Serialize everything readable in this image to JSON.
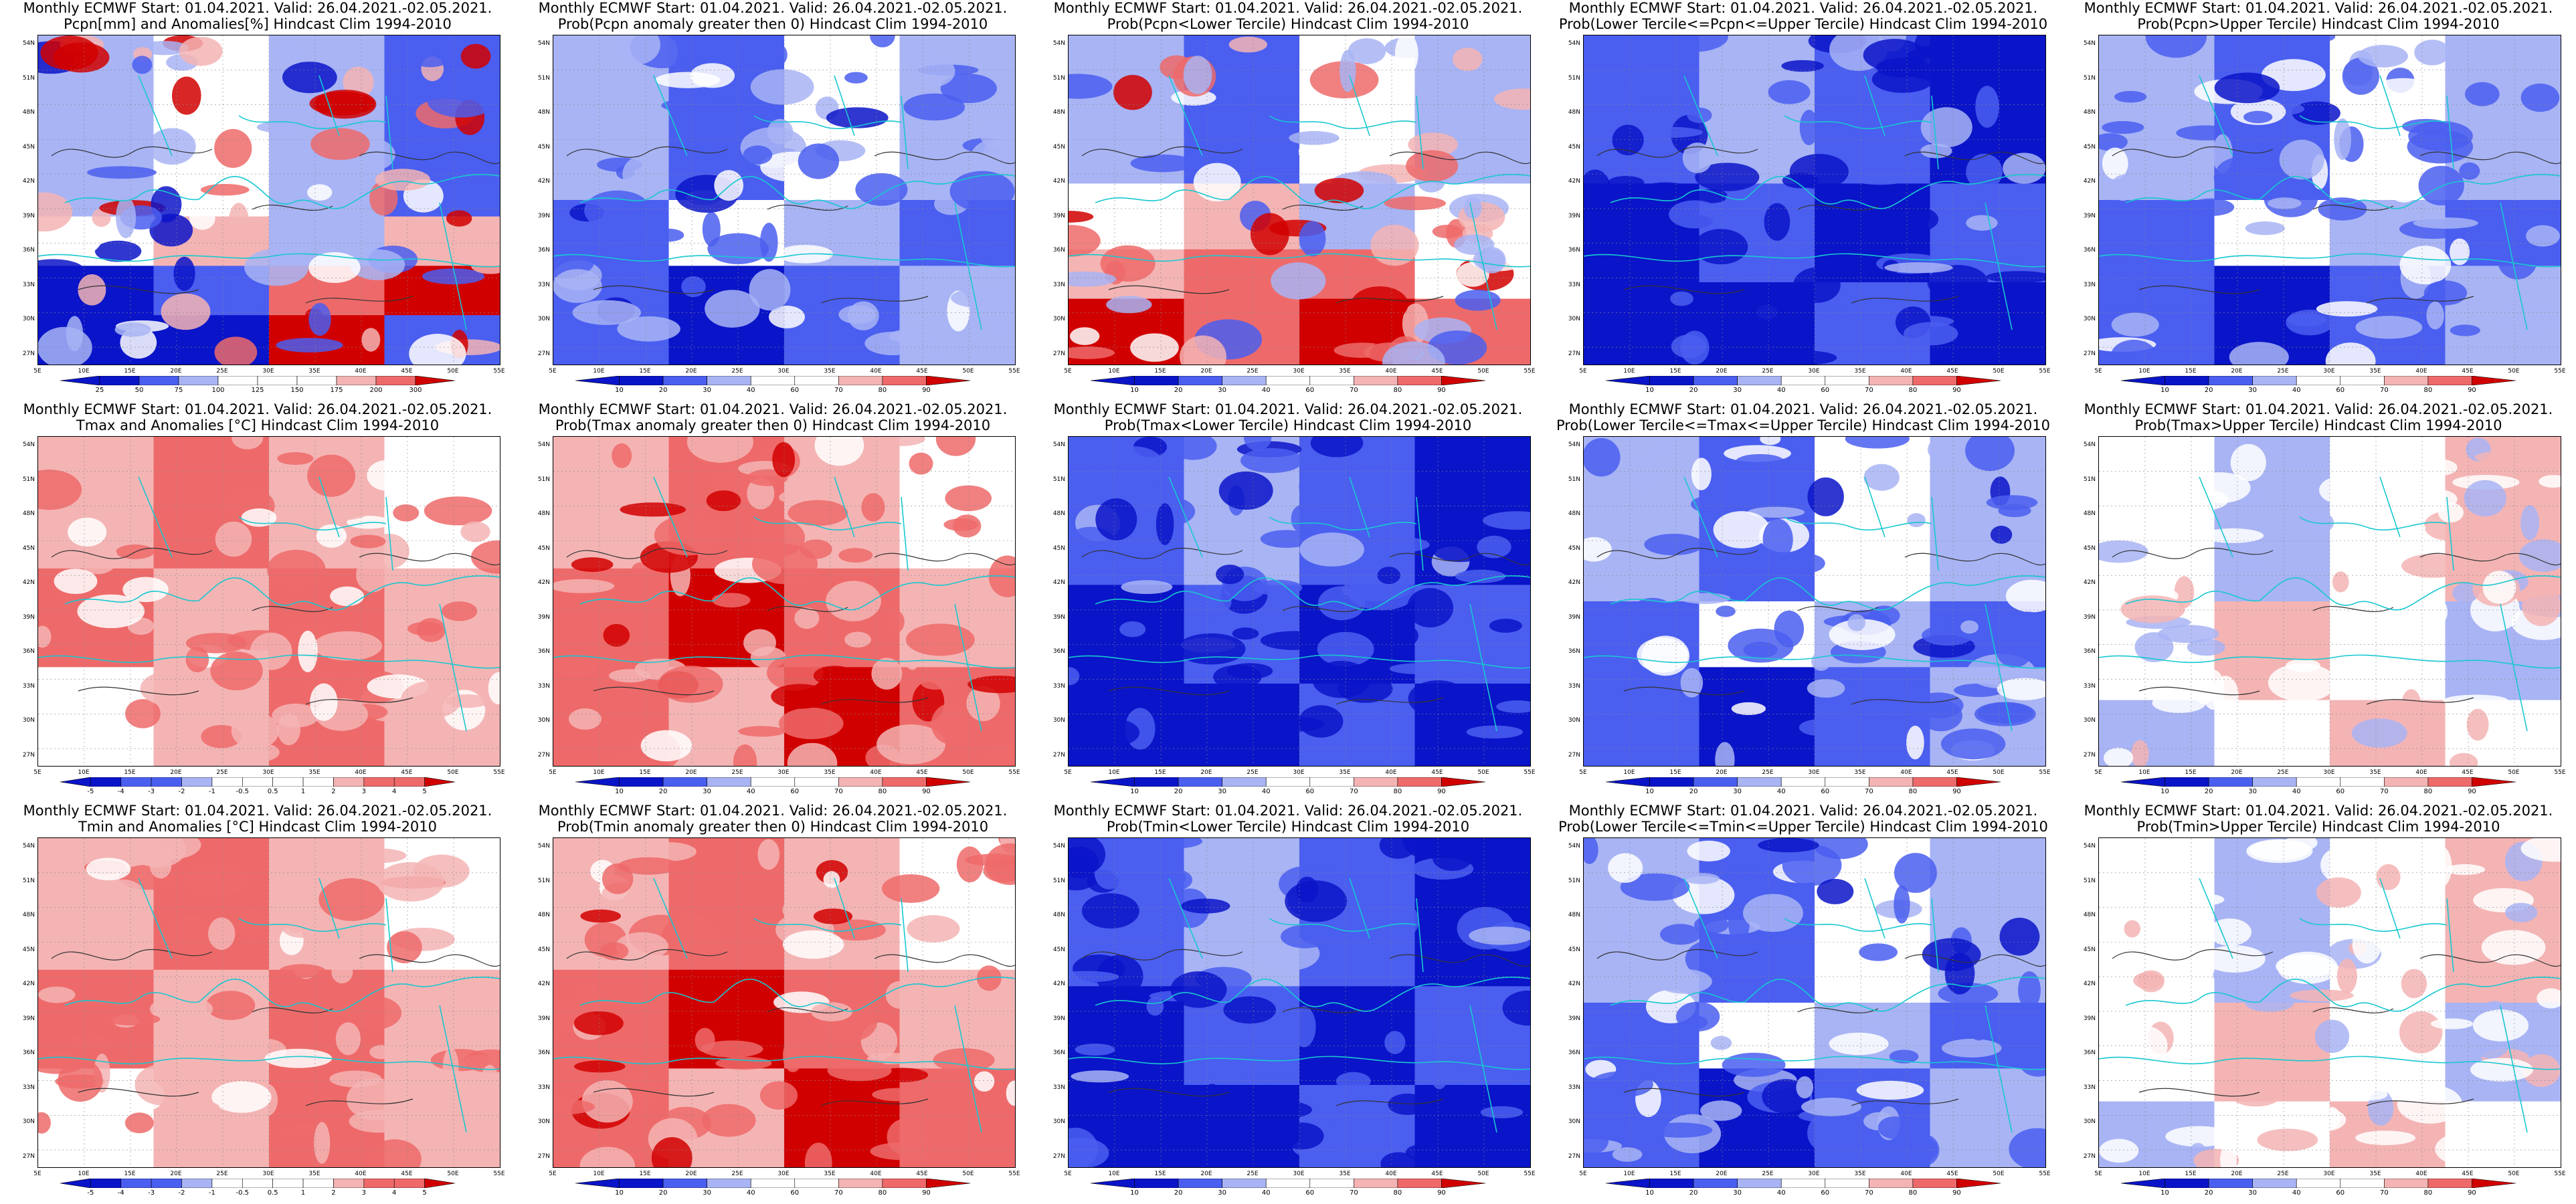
{
  "figure": {
    "panels": [
      {
        "line1": "Monthly ECMWF Start: 01.04.2021. Valid: 26.04.2021.-02.05.2021.",
        "line2": "Pcpn[mm] and Anomalies[%] Hindcast Clim 1994-2010",
        "scheme": "pcpn_anom",
        "colorbar": [
          "25",
          "50",
          "75",
          "100",
          "125",
          "150",
          "175",
          "200",
          "300"
        ]
      },
      {
        "line1": "Monthly ECMWF Start: 01.04.2021. Valid: 26.04.2021.-02.05.2021.",
        "line2": "Prob(Pcpn anomaly greater then 0) Hindcast Clim 1994-2010",
        "scheme": "prob_blue",
        "colorbar": [
          "10",
          "20",
          "30",
          "40",
          "60",
          "70",
          "80",
          "90"
        ]
      },
      {
        "line1": "Monthly ECMWF Start: 01.04.2021. Valid: 26.04.2021.-02.05.2021.",
        "line2": "Prob(Pcpn<Lower Tercile) Hindcast Clim 1994-2010",
        "scheme": "prob_redsouth",
        "colorbar": [
          "10",
          "20",
          "30",
          "40",
          "60",
          "70",
          "80",
          "90"
        ]
      },
      {
        "line1": "Monthly ECMWF Start: 01.04.2021. Valid: 26.04.2021.-02.05.2021.",
        "line2": "Prob(Lower Tercile<=Pcpn<=Upper Tercile) Hindcast Clim 1994-2010",
        "scheme": "prob_deepblue",
        "colorbar": [
          "10",
          "20",
          "30",
          "40",
          "60",
          "70",
          "80",
          "90"
        ]
      },
      {
        "line1": "Monthly ECMWF Start: 01.04.2021. Valid: 26.04.2021.-02.05.2021.",
        "line2": "Prob(Pcpn>Upper Tercile) Hindcast Clim 1994-2010",
        "scheme": "prob_blue",
        "colorbar": [
          "10",
          "20",
          "30",
          "40",
          "60",
          "70",
          "80",
          "90"
        ]
      },
      {
        "line1": "Monthly ECMWF Start: 01.04.2021. Valid: 26.04.2021.-02.05.2021.",
        "line2": "Tmax and Anomalies [°C] Hindcast Clim 1994-2010",
        "scheme": "temp_anom",
        "colorbar": [
          "-5",
          "-4",
          "-3",
          "-2",
          "-1",
          "-0.5",
          "0.5",
          "1",
          "2",
          "3",
          "4",
          "5"
        ]
      },
      {
        "line1": "Monthly ECMWF Start: 01.04.2021. Valid: 26.04.2021.-02.05.2021.",
        "line2": "Prob(Tmax anomaly greater then 0) Hindcast Clim 1994-2010",
        "scheme": "prob_red",
        "colorbar": [
          "10",
          "20",
          "30",
          "40",
          "60",
          "70",
          "80",
          "90"
        ]
      },
      {
        "line1": "Monthly ECMWF Start: 01.04.2021. Valid: 26.04.2021.-02.05.2021.",
        "line2": "Prob(Tmax<Lower Tercile) Hindcast Clim 1994-2010",
        "scheme": "prob_deepblue",
        "colorbar": [
          "10",
          "20",
          "30",
          "40",
          "60",
          "70",
          "80",
          "90"
        ]
      },
      {
        "line1": "Monthly ECMWF Start: 01.04.2021. Valid: 26.04.2021.-02.05.2021.",
        "line2": "Prob(Lower Tercile<=Tmax<=Upper Tercile) Hindcast Clim 1994-2010",
        "scheme": "prob_blue",
        "colorbar": [
          "10",
          "20",
          "30",
          "40",
          "60",
          "70",
          "80",
          "90"
        ]
      },
      {
        "line1": "Monthly ECMWF Start: 01.04.2021. Valid: 26.04.2021.-02.05.2021.",
        "line2": "Prob(Tmax>Upper Tercile) Hindcast Clim 1994-2010",
        "scheme": "prob_light",
        "colorbar": [
          "10",
          "20",
          "30",
          "40",
          "60",
          "70",
          "80",
          "90"
        ]
      },
      {
        "line1": "Monthly ECMWF Start: 01.04.2021. Valid: 26.04.2021.-02.05.2021.",
        "line2": "Tmin and Anomalies [°C] Hindcast Clim 1994-2010",
        "scheme": "temp_anom",
        "colorbar": [
          "-5",
          "-4",
          "-3",
          "-2",
          "-1",
          "-0.5",
          "0.5",
          "1",
          "2",
          "3",
          "4",
          "5"
        ]
      },
      {
        "line1": "Monthly ECMWF Start: 01.04.2021. Valid: 26.04.2021.-02.05.2021.",
        "line2": "Prob(Tmin anomaly greater then 0) Hindcast Clim 1994-2010",
        "scheme": "prob_red",
        "colorbar": [
          "10",
          "20",
          "30",
          "40",
          "60",
          "70",
          "80",
          "90"
        ]
      },
      {
        "line1": "Monthly ECMWF Start: 01.04.2021. Valid: 26.04.2021.-02.05.2021.",
        "line2": "Prob(Tmin<Lower Tercile) Hindcast Clim 1994-2010",
        "scheme": "prob_deepblue",
        "colorbar": [
          "10",
          "20",
          "30",
          "40",
          "60",
          "70",
          "80",
          "90"
        ]
      },
      {
        "line1": "Monthly ECMWF Start: 01.04.2021. Valid: 26.04.2021.-02.05.2021.",
        "line2": "Prob(Lower Tercile<=Tmin<=Upper Tercile) Hindcast Clim 1994-2010",
        "scheme": "prob_blue",
        "colorbar": [
          "10",
          "20",
          "30",
          "40",
          "60",
          "70",
          "80",
          "90"
        ]
      },
      {
        "line1": "Monthly ECMWF Start: 01.04.2021. Valid: 26.04.2021.-02.05.2021.",
        "line2": "Prob(Tmin>Upper Tercile) Hindcast Clim 1994-2010",
        "scheme": "prob_light",
        "colorbar": [
          "10",
          "20",
          "30",
          "40",
          "60",
          "70",
          "80",
          "90"
        ]
      }
    ],
    "lat_labels": [
      "54N",
      "51N",
      "48N",
      "45N",
      "42N",
      "39N",
      "36N",
      "33N",
      "30N",
      "27N"
    ],
    "lon_labels": [
      "5E",
      "10E",
      "15E",
      "20E",
      "25E",
      "30E",
      "35E",
      "40E",
      "45E",
      "50E",
      "55E"
    ],
    "colors": {
      "coast": "#18c8d0",
      "contour": "#333333",
      "blue_dark": "#0a14c8",
      "blue_mid": "#4a5ef0",
      "blue_light": "#a8b4f4",
      "white": "#ffffff",
      "red_light": "#f4b4b4",
      "red_mid": "#ee6a6a",
      "red_dark": "#d10000"
    }
  }
}
